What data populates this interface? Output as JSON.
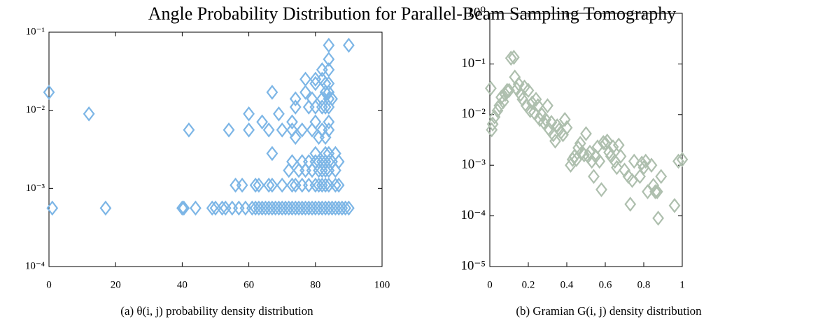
{
  "title": "Angle Probability Distribution for Parallel-Beam Sampling Tomography",
  "chart_data": [
    {
      "type": "scatter",
      "caption": "(a) θ(i, j) probability density distribution",
      "color": "#7db6e6",
      "log_y": true,
      "xlim": [
        0,
        100
      ],
      "xticks": [
        0,
        20,
        40,
        60,
        80,
        100
      ],
      "ylim": [
        0.0001,
        0.1
      ],
      "yticks": [
        {
          "value": 0.0001,
          "label": "10⁻⁴"
        },
        {
          "value": 0.001,
          "label": "10⁻³"
        },
        {
          "value": 0.01,
          "label": "10⁻²"
        },
        {
          "value": 0.1,
          "label": "10⁻¹"
        }
      ],
      "x": [
        1,
        17,
        40,
        40.5,
        44,
        49,
        50,
        52,
        53,
        55,
        57,
        59,
        61,
        62,
        63,
        64,
        65,
        66,
        67,
        68,
        69,
        70,
        71,
        72,
        73,
        74,
        75,
        76,
        77,
        78,
        79,
        80,
        81,
        82,
        83,
        84,
        85,
        86,
        87,
        88,
        89,
        90,
        56,
        58,
        62,
        63,
        66,
        67,
        70,
        73,
        74,
        76,
        78,
        80,
        81,
        82,
        83,
        84,
        86,
        87,
        72,
        75,
        77,
        79,
        81,
        82,
        83,
        84,
        86,
        73,
        76,
        78,
        80,
        81,
        82,
        83,
        84,
        85,
        87,
        67,
        80,
        83,
        84,
        86,
        42,
        54,
        60,
        66,
        70,
        73,
        76,
        79,
        82,
        84,
        74,
        81,
        83,
        12,
        60,
        69,
        0,
        67,
        77,
        83,
        84,
        64,
        73,
        80,
        84,
        74,
        78,
        80,
        82,
        83,
        84,
        74,
        79,
        82,
        84,
        85,
        80,
        83,
        84,
        77,
        80,
        82,
        82,
        84,
        84,
        84,
        90
      ],
      "y": [
        0.00056,
        0.00056,
        0.00056,
        0.00056,
        0.00056,
        0.00056,
        0.00056,
        0.00056,
        0.00056,
        0.00056,
        0.00056,
        0.00056,
        0.00056,
        0.00056,
        0.00056,
        0.00056,
        0.00056,
        0.00056,
        0.00056,
        0.00056,
        0.00056,
        0.00056,
        0.00056,
        0.00056,
        0.00056,
        0.00056,
        0.00056,
        0.00056,
        0.00056,
        0.00056,
        0.00056,
        0.00056,
        0.00056,
        0.00056,
        0.00056,
        0.00056,
        0.00056,
        0.00056,
        0.00056,
        0.00056,
        0.00056,
        0.00056,
        0.0011,
        0.0011,
        0.0011,
        0.0011,
        0.0011,
        0.0011,
        0.0011,
        0.0011,
        0.0011,
        0.0011,
        0.0011,
        0.0011,
        0.0011,
        0.0011,
        0.0011,
        0.0011,
        0.0011,
        0.0011,
        0.0017,
        0.0017,
        0.0017,
        0.0017,
        0.0017,
        0.0017,
        0.0017,
        0.0017,
        0.0017,
        0.0022,
        0.0022,
        0.0022,
        0.0022,
        0.0022,
        0.0022,
        0.0022,
        0.0022,
        0.0022,
        0.0022,
        0.0028,
        0.0028,
        0.0028,
        0.0028,
        0.0028,
        0.0056,
        0.0056,
        0.0056,
        0.0056,
        0.0056,
        0.0056,
        0.0056,
        0.0056,
        0.0056,
        0.0056,
        0.0045,
        0.0045,
        0.0045,
        0.009,
        0.009,
        0.009,
        0.017,
        0.017,
        0.017,
        0.017,
        0.017,
        0.0071,
        0.0071,
        0.0071,
        0.0071,
        0.011,
        0.011,
        0.011,
        0.011,
        0.011,
        0.011,
        0.014,
        0.014,
        0.014,
        0.014,
        0.014,
        0.022,
        0.022,
        0.022,
        0.025,
        0.025,
        0.025,
        0.033,
        0.033,
        0.045,
        0.068,
        0.068
      ]
    },
    {
      "type": "scatter",
      "caption": "(b) Gramian G(i, j) density distribution",
      "color": "#aebfae",
      "log_y": true,
      "xlim": [
        0,
        1
      ],
      "xticks": [
        0,
        0.2,
        0.4,
        0.6,
        0.8,
        1
      ],
      "ylim": [
        1e-05,
        1
      ],
      "yticks": [
        {
          "value": 1e-05,
          "label": "10⁻⁵"
        },
        {
          "value": 0.0001,
          "label": "10⁻⁴"
        },
        {
          "value": 0.001,
          "label": "10⁻³"
        },
        {
          "value": 0.01,
          "label": "10⁻²"
        },
        {
          "value": 0.1,
          "label": "10⁻¹"
        },
        {
          "value": 1,
          "label": "10⁰"
        }
      ],
      "x": [
        0.005,
        0.01,
        0.015,
        0.025,
        0.04,
        0.05,
        0.06,
        0.07,
        0.08,
        0.09,
        0.1,
        0.11,
        0.125,
        0.13,
        0.14,
        0.15,
        0.16,
        0.17,
        0.18,
        0.19,
        0.2,
        0.21,
        0.22,
        0.23,
        0.24,
        0.25,
        0.26,
        0.27,
        0.28,
        0.29,
        0.3,
        0.31,
        0.32,
        0.33,
        0.34,
        0.35,
        0.36,
        0.37,
        0.38,
        0.39,
        0.4,
        0.42,
        0.43,
        0.44,
        0.45,
        0.46,
        0.47,
        0.48,
        0.49,
        0.5,
        0.51,
        0.52,
        0.53,
        0.54,
        0.55,
        0.56,
        0.57,
        0.58,
        0.59,
        0.6,
        0.61,
        0.62,
        0.63,
        0.64,
        0.65,
        0.66,
        0.67,
        0.68,
        0.7,
        0.72,
        0.73,
        0.74,
        0.75,
        0.78,
        0.79,
        0.8,
        0.81,
        0.82,
        0.84,
        0.85,
        0.86,
        0.87,
        0.875,
        0.89,
        0.96,
        0.98,
        1.0
      ],
      "y": [
        0.033,
        0.005,
        0.0065,
        0.009,
        0.012,
        0.015,
        0.022,
        0.018,
        0.025,
        0.03,
        0.03,
        0.13,
        0.135,
        0.055,
        0.032,
        0.04,
        0.025,
        0.02,
        0.035,
        0.015,
        0.03,
        0.012,
        0.017,
        0.011,
        0.02,
        0.015,
        0.008,
        0.01,
        0.007,
        0.008,
        0.015,
        0.005,
        0.007,
        0.004,
        0.003,
        0.006,
        0.005,
        0.0045,
        0.004,
        0.008,
        0.0055,
        0.001,
        0.0013,
        0.0015,
        0.0013,
        0.0022,
        0.0027,
        0.0018,
        0.0016,
        0.0042,
        0.0015,
        0.0018,
        0.0012,
        0.0006,
        0.0015,
        0.0023,
        0.0012,
        0.00033,
        0.0028,
        0.0027,
        0.003,
        0.0018,
        0.0015,
        0.0023,
        0.0012,
        0.0009,
        0.0025,
        0.0015,
        0.0008,
        0.0006,
        0.00017,
        0.0005,
        0.0012,
        0.0006,
        0.0011,
        0.0009,
        0.0012,
        0.0003,
        0.001,
        0.0004,
        0.0003,
        0.0003,
        9e-05,
        0.0006,
        0.00016,
        0.0012,
        0.0013
      ]
    }
  ]
}
